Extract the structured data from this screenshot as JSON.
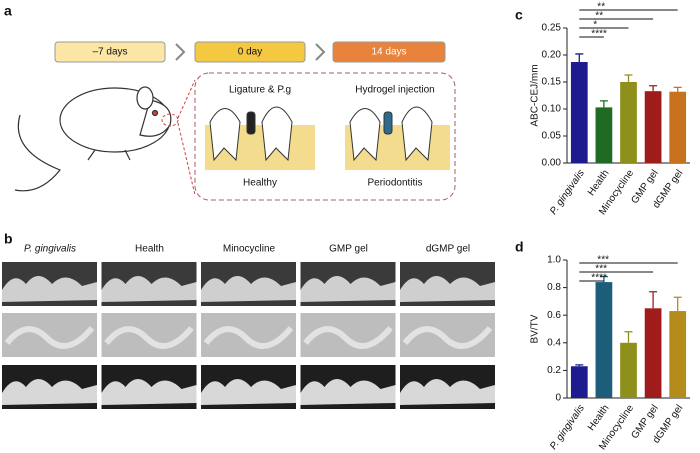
{
  "panel_a": {
    "letter": "a",
    "timeline": [
      "–7 days",
      "0 day",
      "14 days"
    ],
    "steps": [
      "Ligature & P.g",
      "Hydrogel injection"
    ],
    "states": [
      "Healthy",
      "Periodontitis"
    ]
  },
  "panel_b": {
    "letter": "b",
    "columns": [
      "P. gingivalis",
      "Health",
      "Minocycline",
      "GMP gel",
      "dGMP gel"
    ]
  },
  "chart_data": [
    {
      "type": "bar",
      "letter": "c",
      "y_label": "ABC-CEJ/mm",
      "categories": [
        "P. gingivalis",
        "Health",
        "Minocycline",
        "GMP gel",
        "dGMP gel"
      ],
      "values": [
        0.187,
        0.103,
        0.15,
        0.133,
        0.132
      ],
      "errors": [
        0.015,
        0.012,
        0.013,
        0.01,
        0.008
      ],
      "colors": [
        "#1c1c8f",
        "#1f6b24",
        "#8f8f1c",
        "#9e1c1c",
        "#c8721f"
      ],
      "ylim": [
        0,
        0.25
      ],
      "yticks": [
        {
          "value": 0,
          "label": "0.00"
        },
        0.05,
        {
          "value": 0.1,
          "label": "0.10"
        },
        0.15,
        {
          "value": 0.2,
          "label": "0.20"
        },
        0.25
      ],
      "significance": [
        {
          "from": "P. gingivalis",
          "to": "dGMP gel",
          "label": "**"
        },
        {
          "from": "P. gingivalis",
          "to": "GMP gel",
          "label": "**"
        },
        {
          "from": "P. gingivalis",
          "to": "Minocycline",
          "label": "*"
        },
        {
          "from": "P. gingivalis",
          "to": "Health",
          "label": "****"
        }
      ]
    },
    {
      "type": "bar",
      "letter": "d",
      "y_label": "BV/TV",
      "categories": [
        "P. gingivalis",
        "Health",
        "Minocycline",
        "GMP gel",
        "dGMP gel"
      ],
      "values": [
        0.23,
        0.84,
        0.4,
        0.65,
        0.63
      ],
      "errors": [
        0.01,
        0.04,
        0.08,
        0.12,
        0.1
      ],
      "colors": [
        "#1c1c8f",
        "#1c5e7a",
        "#8f8f1c",
        "#a01c1c",
        "#b38c1c"
      ],
      "ylim": [
        0,
        1
      ],
      "yticks": [
        0,
        0.2,
        0.4,
        0.6,
        0.8,
        {
          "value": 1,
          "label": "1.0"
        }
      ],
      "significance": [
        {
          "from": "P. gingivalis",
          "to": "dGMP gel",
          "label": "***"
        },
        {
          "from": "P. gingivalis",
          "to": "GMP gel",
          "label": "***"
        },
        {
          "from": "P. gingivalis",
          "to": "Health",
          "label": "****"
        }
      ]
    }
  ]
}
